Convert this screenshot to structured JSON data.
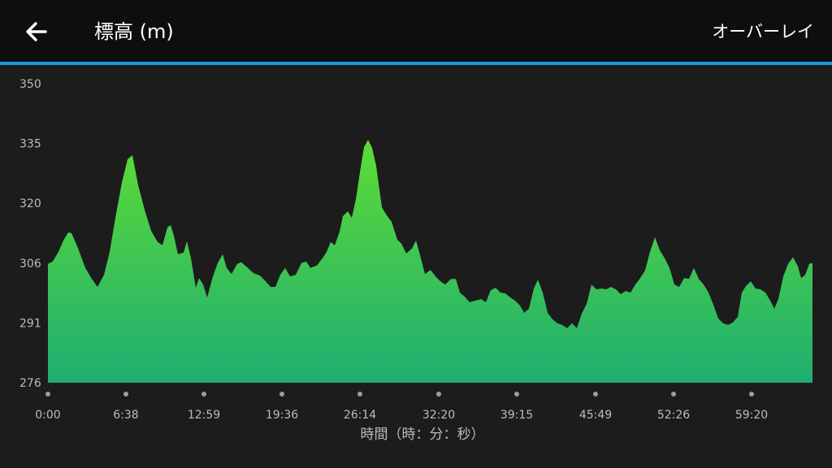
{
  "header": {
    "title": "標高 (m)",
    "action": "オーバーレイ"
  },
  "chart_data": {
    "type": "area",
    "x_label": "時間（時：分：秒）",
    "x": [
      0,
      6,
      13,
      19,
      25,
      29,
      36,
      46,
      54,
      61,
      69,
      76,
      83,
      91,
      98,
      104,
      111,
      119,
      127,
      135,
      141,
      147,
      151,
      155,
      160,
      167,
      171,
      176,
      182,
      186,
      191,
      196,
      203,
      209,
      215,
      220,
      226,
      233,
      238,
      246,
      253,
      261,
      268,
      274,
      280,
      286,
      292,
      298,
      305,
      312,
      318,
      323,
      331,
      338,
      343,
      348,
      353,
      359,
      363,
      369,
      374,
      379,
      384,
      389,
      394,
      399,
      404,
      411,
      417,
      423,
      430,
      435,
      441,
      448,
      453,
      459,
      464,
      471,
      477,
      483,
      489,
      496,
      502,
      507,
      513,
      519,
      526,
      533,
      539,
      545,
      551,
      557,
      563,
      569,
      575,
      581,
      586,
      592,
      598,
      603,
      609,
      615,
      621,
      627,
      633,
      639,
      645,
      651,
      657,
      663,
      669,
      675,
      681,
      687,
      693,
      699,
      705,
      711,
      717,
      723,
      729,
      735,
      741,
      747,
      753,
      759,
      765,
      771,
      777,
      783,
      789,
      795,
      801,
      807,
      813,
      819,
      825,
      831,
      837,
      843,
      849,
      854,
      859,
      865,
      871,
      877,
      883,
      889,
      894,
      899,
      905,
      911,
      917,
      923,
      927,
      932,
      937,
      941
    ],
    "values": [
      305.4,
      306.0,
      308.4,
      311.2,
      313.2,
      313.0,
      309.8,
      304.4,
      301.7,
      299.7,
      302.7,
      308.4,
      316.8,
      325.5,
      331.3,
      332.3,
      324.9,
      318.8,
      313.6,
      310.8,
      310.0,
      314.4,
      315.0,
      312.4,
      307.8,
      308.2,
      311.0,
      306.8,
      299.5,
      301.9,
      300.3,
      297.1,
      302.3,
      305.6,
      307.8,
      304.4,
      302.9,
      305.4,
      305.8,
      304.4,
      303.1,
      302.5,
      301.1,
      299.7,
      299.7,
      302.7,
      304.4,
      302.3,
      302.7,
      305.6,
      306.0,
      304.4,
      305.0,
      306.8,
      308.4,
      310.8,
      310.0,
      313.4,
      317.2,
      318.4,
      316.8,
      321.4,
      328.1,
      334.3,
      336.1,
      334.1,
      329.7,
      319.4,
      317.4,
      315.8,
      311.4,
      310.4,
      308.0,
      309.2,
      311.2,
      306.8,
      302.9,
      303.9,
      302.3,
      301.1,
      300.3,
      301.7,
      301.7,
      298.3,
      297.3,
      295.9,
      296.3,
      296.7,
      295.9,
      298.9,
      299.5,
      298.3,
      298.1,
      297.1,
      296.3,
      295.1,
      293.3,
      294.3,
      299.3,
      301.5,
      298.3,
      293.3,
      291.7,
      290.7,
      290.3,
      289.5,
      290.7,
      289.5,
      293.1,
      295.5,
      300.3,
      299.1,
      299.3,
      299.1,
      299.7,
      299.1,
      297.9,
      298.7,
      298.3,
      300.3,
      301.9,
      303.8,
      308.4,
      312.0,
      308.8,
      306.8,
      304.4,
      300.3,
      299.7,
      301.9,
      301.7,
      304.4,
      301.7,
      300.3,
      298.3,
      295.3,
      291.9,
      290.7,
      290.3,
      290.9,
      292.3,
      298.3,
      299.9,
      301.1,
      299.3,
      299.1,
      298.3,
      296.3,
      294.3,
      296.7,
      302.3,
      305.4,
      307.0,
      304.8,
      301.9,
      302.7,
      305.4,
      305.6
    ],
    "color_top": "#5ddc35",
    "color_bottom": "#1fae72",
    "xlim": [
      0,
      941
    ],
    "xticks": [
      {
        "value": 0,
        "label": "0:00"
      },
      {
        "value": 96,
        "label": "6:38"
      },
      {
        "value": 192,
        "label": "12:59"
      },
      {
        "value": 288,
        "label": "19:36"
      },
      {
        "value": 384,
        "label": "26:14"
      },
      {
        "value": 481,
        "label": "32:20"
      },
      {
        "value": 577,
        "label": "39:15"
      },
      {
        "value": 674,
        "label": "45:49"
      },
      {
        "value": 770,
        "label": "52:26"
      },
      {
        "value": 866,
        "label": "59:20"
      }
    ],
    "ylim": [
      276,
      350
    ],
    "yticks": [
      276,
      {
        "value": 290.8,
        "label": "291"
      },
      {
        "value": 305.6,
        "label": "306"
      },
      {
        "value": 320.4,
        "label": "320"
      },
      {
        "value": 335.2,
        "label": "335"
      },
      350
    ],
    "grid": false
  }
}
